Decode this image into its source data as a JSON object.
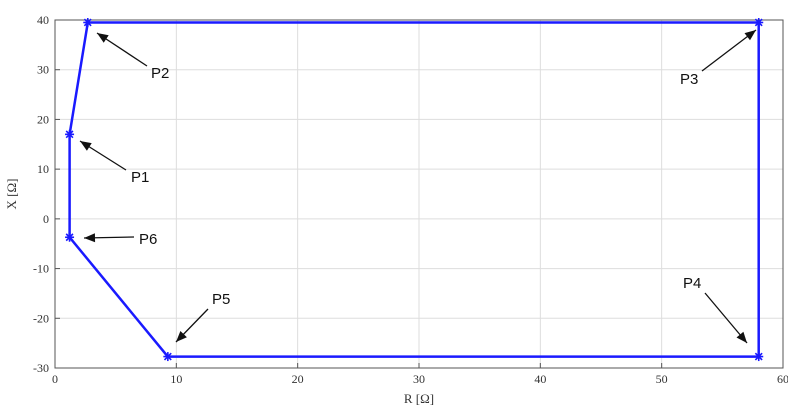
{
  "chart_data": {
    "type": "line",
    "xlabel": "R [Ω]",
    "ylabel": "X [Ω]",
    "xlim": [
      0,
      60
    ],
    "ylim": [
      -30,
      40
    ],
    "xticks": [
      0,
      10,
      20,
      30,
      40,
      50,
      60
    ],
    "yticks": [
      -30,
      -20,
      -10,
      0,
      10,
      20,
      30,
      40
    ],
    "xtick_labels": [
      "0",
      "10",
      "20",
      "30",
      "40",
      "50",
      "60"
    ],
    "ytick_labels": [
      "-30",
      "-20",
      "-10",
      "0",
      "10",
      "20",
      "30",
      "40"
    ],
    "grid": true,
    "closed": true,
    "series_color": "#1a1aff",
    "points": [
      {
        "label": "P1",
        "x": 1.2,
        "y": 17.0
      },
      {
        "label": "P2",
        "x": 2.7,
        "y": 39.5
      },
      {
        "label": "P3",
        "x": 58.0,
        "y": 39.5
      },
      {
        "label": "P4",
        "x": 58.0,
        "y": -27.7
      },
      {
        "label": "P5",
        "x": 9.3,
        "y": -27.7
      },
      {
        "label": "P6",
        "x": 1.2,
        "y": -3.7
      }
    ]
  }
}
